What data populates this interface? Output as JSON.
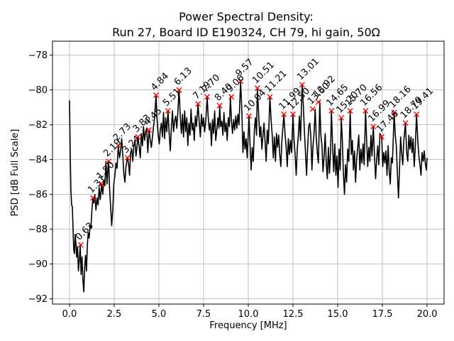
{
  "chart_data": {
    "type": "line",
    "title": "Power Spectral Density:",
    "subtitle": "Run 27, Board ID E190324, CH 79, hi gain, 50Ω",
    "xlabel": "Frequency [MHz]",
    "ylabel": "PSD [dB Full Scale]",
    "xlim": [
      -0.95,
      20.95
    ],
    "ylim": [
      -92.3,
      -77.2
    ],
    "xticks": [
      0.0,
      2.5,
      5.0,
      7.5,
      10.0,
      12.5,
      15.0,
      17.5,
      20.0
    ],
    "xtick_labels": [
      "0.0",
      "2.5",
      "5.0",
      "7.5",
      "10.0",
      "12.5",
      "15.0",
      "17.5",
      "20.0"
    ],
    "yticks": [
      -92,
      -90,
      -88,
      -86,
      -84,
      -82,
      -80,
      -78
    ],
    "ytick_labels": [
      "−92",
      "−90",
      "−88",
      "−86",
      "−84",
      "−82",
      "−80",
      "−78"
    ],
    "grid": true,
    "line_color": "#000000",
    "marker_color": "#ff0000",
    "series": [
      {
        "values_x": [
          0.0,
          0.04,
          0.08,
          0.12,
          0.16,
          0.2,
          0.24,
          0.28,
          0.32,
          0.36,
          0.4,
          0.45,
          0.5,
          0.55,
          0.6,
          0.65,
          0.7,
          0.75,
          0.8,
          0.85,
          0.9,
          0.95,
          1.0,
          1.05,
          1.1,
          1.15,
          1.2,
          1.25,
          1.31,
          1.36,
          1.42,
          1.48,
          1.54,
          1.6,
          1.66,
          1.72,
          1.8,
          1.86,
          1.92,
          1.98,
          2.04,
          2.1,
          2.16,
          2.19,
          2.24,
          2.3,
          2.36,
          2.42,
          2.48,
          2.54,
          2.6,
          2.66,
          2.73,
          2.8,
          2.86,
          2.92,
          2.98,
          3.04,
          3.1,
          3.16,
          3.24,
          3.3,
          3.36,
          3.42,
          3.48,
          3.54,
          3.6,
          3.66,
          3.72,
          3.83,
          3.9,
          3.96,
          4.02,
          4.08,
          4.14,
          4.2,
          4.26,
          4.32,
          4.38,
          4.45,
          4.52,
          4.58,
          4.64,
          4.7,
          4.76,
          4.84,
          4.9,
          4.96,
          5.02,
          5.08,
          5.14,
          5.2,
          5.26,
          5.32,
          5.38,
          5.44,
          5.51,
          5.58,
          5.64,
          5.7,
          5.76,
          5.82,
          5.88,
          5.94,
          6.0,
          6.06,
          6.13,
          6.2,
          6.26,
          6.32,
          6.38,
          6.44,
          6.5,
          6.56,
          6.62,
          6.68,
          6.74,
          6.8,
          6.86,
          6.92,
          6.98,
          7.04,
          7.1,
          7.19,
          7.26,
          7.32,
          7.38,
          7.44,
          7.5,
          7.56,
          7.62,
          7.7,
          7.76,
          7.82,
          7.88,
          7.94,
          8.0,
          8.06,
          8.12,
          8.18,
          8.24,
          8.3,
          8.36,
          8.4,
          8.46,
          8.52,
          8.58,
          8.64,
          8.7,
          8.76,
          8.82,
          8.88,
          8.94,
          9.0,
          9.06,
          9.12,
          9.18,
          9.24,
          9.3,
          9.36,
          9.42,
          9.48,
          9.57,
          9.64,
          9.7,
          9.76,
          9.82,
          9.88,
          9.94,
          10.04,
          10.1,
          10.16,
          10.22,
          10.28,
          10.34,
          10.4,
          10.46,
          10.51,
          10.58,
          10.64,
          10.7,
          10.76,
          10.82,
          10.88,
          10.94,
          11.0,
          11.06,
          11.12,
          11.21,
          11.28,
          11.34,
          11.4,
          11.46,
          11.52,
          11.58,
          11.64,
          11.7,
          11.76,
          11.82,
          11.88,
          11.99,
          12.06,
          12.12,
          12.18,
          12.24,
          12.3,
          12.36,
          12.42,
          12.5,
          12.56,
          12.62,
          12.68,
          12.74,
          12.8,
          12.86,
          12.92,
          13.01,
          13.08,
          13.14,
          13.2,
          13.26,
          13.32,
          13.38,
          13.44,
          13.5,
          13.56,
          13.62,
          13.68,
          13.74,
          13.8,
          13.86,
          13.92,
          14.0,
          14.06,
          14.12,
          14.18,
          14.24,
          14.3,
          14.36,
          14.42,
          14.48,
          14.54,
          14.6,
          14.65,
          14.72,
          14.78,
          14.84,
          14.9,
          14.96,
          15.02,
          15.08,
          15.14,
          15.2,
          15.26,
          15.32,
          15.38,
          15.44,
          15.5,
          15.56,
          15.62,
          15.7,
          15.76,
          15.82,
          15.88,
          15.94,
          16.0,
          16.06,
          16.12,
          16.18,
          16.24,
          16.3,
          16.36,
          16.42,
          16.48,
          16.56,
          16.62,
          16.68,
          16.74,
          16.8,
          16.86,
          16.92,
          16.99,
          17.06,
          17.12,
          17.18,
          17.24,
          17.3,
          17.36,
          17.46,
          17.52,
          17.58,
          17.64,
          17.7,
          17.76,
          17.82,
          17.88,
          17.94,
          18.0,
          18.06,
          18.16,
          18.22,
          18.28,
          18.34,
          18.4,
          18.46,
          18.52,
          18.58,
          18.64,
          18.7,
          18.79,
          18.86,
          18.92,
          18.98,
          19.04,
          19.1,
          19.16,
          19.22,
          19.28,
          19.34,
          19.41,
          19.48,
          19.54,
          19.6,
          19.66,
          19.72,
          19.78,
          19.84,
          19.9,
          19.96,
          20.0
        ],
        "values_y": [
          -80.6,
          -83.5,
          -85.8,
          -86.6,
          -86.7,
          -88.0,
          -89.2,
          -89.4,
          -88.3,
          -88.8,
          -89.6,
          -89.0,
          -90.4,
          -89.8,
          -88.9,
          -90.6,
          -89.6,
          -90.9,
          -91.6,
          -90.2,
          -89.5,
          -90.4,
          -88.9,
          -88.2,
          -88.5,
          -87.8,
          -87.9,
          -87.0,
          -86.2,
          -86.5,
          -86.0,
          -86.9,
          -86.2,
          -86.6,
          -85.6,
          -86.3,
          -85.4,
          -86.0,
          -85.2,
          -85.5,
          -84.1,
          -85.4,
          -84.4,
          -84.1,
          -85.6,
          -86.7,
          -87.8,
          -86.9,
          -85.4,
          -84.9,
          -84.2,
          -84.5,
          -83.2,
          -83.9,
          -83.5,
          -82.8,
          -83.7,
          -84.8,
          -85.3,
          -84.4,
          -83.9,
          -84.2,
          -84.9,
          -83.6,
          -83.4,
          -84.1,
          -83.2,
          -82.9,
          -83.8,
          -82.7,
          -83.3,
          -83.9,
          -82.5,
          -83.2,
          -82.1,
          -82.9,
          -82.4,
          -82.2,
          -83.6,
          -82.3,
          -82.9,
          -83.3,
          -82.7,
          -82.1,
          -81.6,
          -80.3,
          -81.7,
          -82.6,
          -83.1,
          -82.3,
          -81.9,
          -82.7,
          -81.3,
          -82.8,
          -81.6,
          -82.4,
          -81.2,
          -82.6,
          -83.5,
          -82.1,
          -81.2,
          -82.4,
          -81.8,
          -81.5,
          -82.2,
          -81.3,
          -80.0,
          -81.6,
          -82.5,
          -81.4,
          -82.7,
          -81.2,
          -82.4,
          -81.6,
          -83.2,
          -81.9,
          -82.6,
          -81.1,
          -82.3,
          -81.9,
          -82.9,
          -81.5,
          -82.1,
          -80.8,
          -81.9,
          -82.7,
          -81.4,
          -82.1,
          -81.6,
          -82.4,
          -81.8,
          -80.4,
          -81.6,
          -82.3,
          -81.9,
          -83.2,
          -81.7,
          -82.5,
          -81.2,
          -82.9,
          -82.3,
          -81.6,
          -82.2,
          -80.9,
          -82.1,
          -81.8,
          -82.6,
          -81.3,
          -82.4,
          -81.9,
          -82.9,
          -81.6,
          -82.1,
          -80.4,
          -81.8,
          -82.5,
          -81.7,
          -82.3,
          -81.5,
          -82.2,
          -81.4,
          -82.0,
          -79.5,
          -81.2,
          -83.6,
          -82.4,
          -83.4,
          -82.8,
          -83.9,
          -81.5,
          -83.2,
          -84.6,
          -83.3,
          -84.1,
          -82.3,
          -81.6,
          -82.6,
          -79.9,
          -81.4,
          -82.7,
          -82.1,
          -83.4,
          -82.6,
          -81.9,
          -83.0,
          -84.1,
          -82.3,
          -83.1,
          -80.4,
          -81.8,
          -82.6,
          -83.9,
          -82.7,
          -84.1,
          -82.5,
          -83.3,
          -82.6,
          -83.7,
          -84.4,
          -82.9,
          -81.4,
          -82.6,
          -83.3,
          -84.4,
          -82.8,
          -83.7,
          -82.9,
          -83.6,
          -81.4,
          -82.9,
          -83.7,
          -84.9,
          -83.4,
          -82.6,
          -81.5,
          -82.9,
          -79.7,
          -80.9,
          -82.4,
          -83.6,
          -84.9,
          -83.3,
          -82.1,
          -81.9,
          -82.7,
          -84.6,
          -83.2,
          -82.5,
          -81.1,
          -82.7,
          -83.6,
          -84.2,
          -80.7,
          -82.6,
          -83.2,
          -84.7,
          -83.8,
          -82.5,
          -84.2,
          -85.1,
          -83.3,
          -84.8,
          -83.6,
          -81.2,
          -83.3,
          -84.7,
          -83.1,
          -84.9,
          -83.8,
          -85.6,
          -83.4,
          -84.6,
          -81.6,
          -82.9,
          -84.8,
          -86.0,
          -84.3,
          -85.3,
          -83.4,
          -84.1,
          -81.2,
          -83.7,
          -82.9,
          -84.6,
          -83.5,
          -85.3,
          -84.0,
          -83.3,
          -82.6,
          -84.6,
          -83.4,
          -84.2,
          -83.1,
          -84.3,
          -81.2,
          -82.9,
          -84.4,
          -83.3,
          -84.1,
          -82.6,
          -83.8,
          -82.1,
          -83.8,
          -85.1,
          -84.0,
          -83.2,
          -84.3,
          -82.5,
          -82.7,
          -84.4,
          -83.6,
          -84.2,
          -83.5,
          -84.9,
          -83.2,
          -84.6,
          -85.4,
          -83.9,
          -84.2,
          -81.3,
          -82.6,
          -83.2,
          -84.8,
          -86.2,
          -84.5,
          -82.7,
          -83.6,
          -84.3,
          -82.9,
          -81.9,
          -83.6,
          -84.1,
          -82.6,
          -83.4,
          -82.7,
          -83.6,
          -82.8,
          -84.4,
          -83.3,
          -81.4,
          -82.9,
          -83.8,
          -84.3,
          -84.9,
          -83.6,
          -84.1,
          -83.5,
          -84.2,
          -84.6,
          -83.9
        ]
      }
    ],
    "peaks": [
      {
        "label": "0.63",
        "x": 0.63,
        "y": -88.9
      },
      {
        "label": "1.31",
        "x": 1.31,
        "y": -86.2
      },
      {
        "label": "1.80",
        "x": 1.8,
        "y": -85.4
      },
      {
        "label": "2.19",
        "x": 2.19,
        "y": -84.1
      },
      {
        "label": "2.73",
        "x": 2.73,
        "y": -83.2
      },
      {
        "label": "3.24",
        "x": 3.24,
        "y": -83.9
      },
      {
        "label": "3.83",
        "x": 3.83,
        "y": -82.7
      },
      {
        "label": "4.45",
        "x": 4.45,
        "y": -82.3
      },
      {
        "label": "4.84",
        "x": 4.84,
        "y": -80.3
      },
      {
        "label": "5.51",
        "x": 5.51,
        "y": -81.2
      },
      {
        "label": "6.13",
        "x": 6.13,
        "y": -80.0
      },
      {
        "label": "7.19",
        "x": 7.19,
        "y": -80.8
      },
      {
        "label": "7.70",
        "x": 7.7,
        "y": -80.4
      },
      {
        "label": "8.40",
        "x": 8.4,
        "y": -80.9
      },
      {
        "label": "9.06",
        "x": 9.06,
        "y": -80.4
      },
      {
        "label": "9.57",
        "x": 9.57,
        "y": -79.5
      },
      {
        "label": "10.04",
        "x": 10.04,
        "y": -81.5
      },
      {
        "label": "10.51",
        "x": 10.51,
        "y": -79.9
      },
      {
        "label": "11.21",
        "x": 11.21,
        "y": -80.4
      },
      {
        "label": "11.99",
        "x": 11.99,
        "y": -81.4
      },
      {
        "label": "12.50",
        "x": 12.5,
        "y": -81.4
      },
      {
        "label": "13.01",
        "x": 13.01,
        "y": -79.7
      },
      {
        "label": "13.60",
        "x": 13.6,
        "y": -81.1
      },
      {
        "label": "13.92",
        "x": 13.92,
        "y": -80.7
      },
      {
        "label": "14.65",
        "x": 14.65,
        "y": -81.2
      },
      {
        "label": "15.20",
        "x": 15.2,
        "y": -81.6
      },
      {
        "label": "15.70",
        "x": 15.7,
        "y": -81.2
      },
      {
        "label": "16.56",
        "x": 16.56,
        "y": -81.2
      },
      {
        "label": "16.99",
        "x": 16.99,
        "y": -82.1
      },
      {
        "label": "17.46",
        "x": 17.46,
        "y": -82.7
      },
      {
        "label": "18.16",
        "x": 18.16,
        "y": -81.3
      },
      {
        "label": "18.79",
        "x": 18.79,
        "y": -81.9
      },
      {
        "label": "19.41",
        "x": 19.41,
        "y": -81.4
      }
    ]
  }
}
